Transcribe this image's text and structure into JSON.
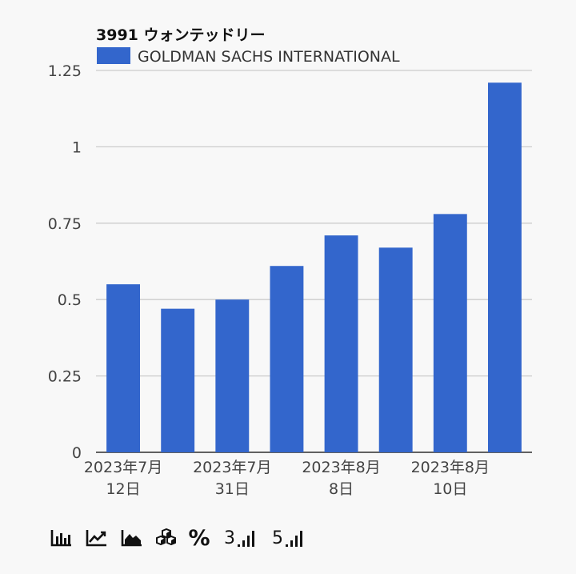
{
  "chart_data": {
    "type": "bar",
    "title": "3991 ウォンテッドリー",
    "legend_position": "top-left",
    "categories": [
      "2023年7月12日",
      "",
      "2023年7月31日",
      "",
      "2023年8月8日",
      "",
      "2023年8月10日",
      ""
    ],
    "x_tick_labels": [
      {
        "line1": "2023年7月",
        "line2": "12日",
        "bar_index": 0
      },
      {
        "line1": "2023年7月",
        "line2": "31日",
        "bar_index": 2
      },
      {
        "line1": "2023年8月",
        "line2": "8日",
        "bar_index": 4
      },
      {
        "line1": "2023年8月",
        "line2": "10日",
        "bar_index": 6
      }
    ],
    "series": [
      {
        "name": "GOLDMAN SACHS INTERNATIONAL",
        "color": "#3366cc",
        "values": [
          0.55,
          0.47,
          0.5,
          0.61,
          0.71,
          0.67,
          0.78,
          1.21
        ]
      }
    ],
    "y_ticks": [
      "0",
      "0.25",
      "0.5",
      "0.75",
      "1",
      "1.25"
    ],
    "ylim": [
      0,
      1.25
    ],
    "grid": true,
    "gridline_color": "#cccccc",
    "baseline_color": "#333333"
  },
  "toolbar": {
    "buttons": [
      {
        "name": "bar-chart-icon"
      },
      {
        "name": "line-chart-icon"
      },
      {
        "name": "area-chart-icon"
      },
      {
        "name": "stacked-boxes-icon"
      },
      {
        "name": "percent-icon",
        "text": "%"
      },
      {
        "name": "top3-icon",
        "text": "3"
      },
      {
        "name": "top5-icon",
        "text": "5"
      }
    ]
  }
}
